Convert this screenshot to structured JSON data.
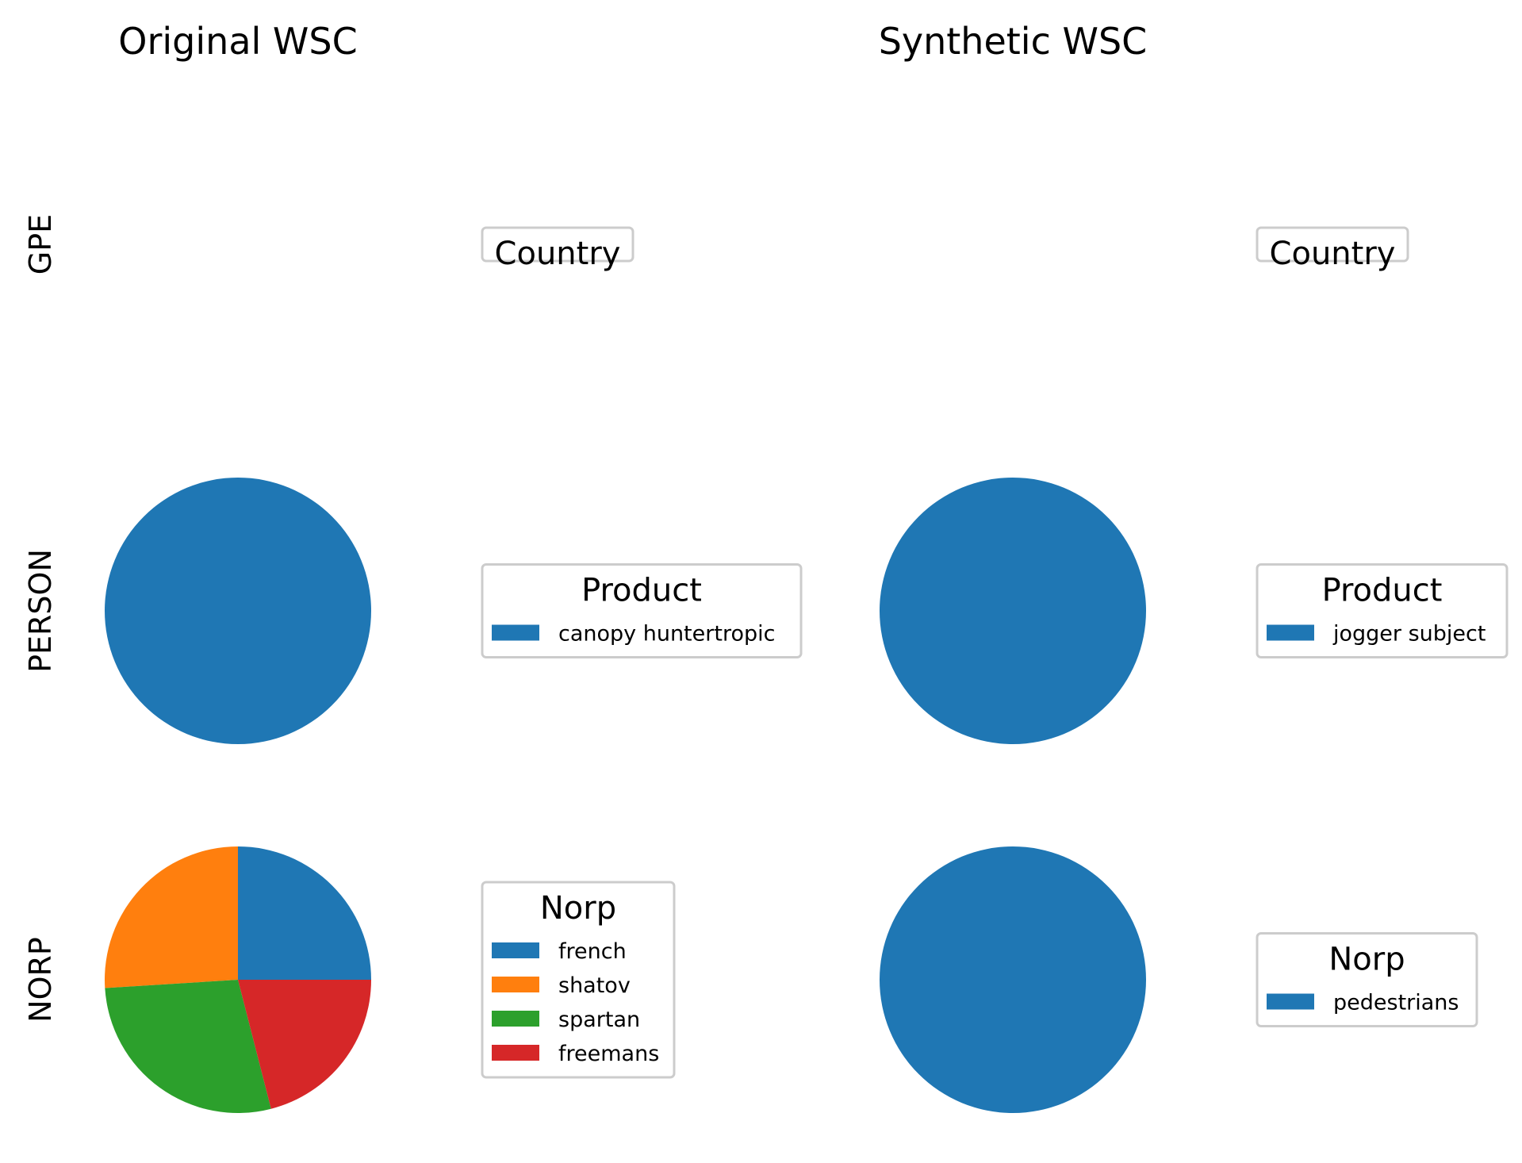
{
  "columns": [
    {
      "title": "Original WSC"
    },
    {
      "title": "Synthetic WSC"
    }
  ],
  "rows": [
    {
      "label": "GPE"
    },
    {
      "label": "PERSON"
    },
    {
      "label": "NORP"
    }
  ],
  "colors": [
    "#1f77b4",
    "#ff7f0e",
    "#2ca02c",
    "#d62728"
  ],
  "chart_data": [
    {
      "type": "pie",
      "column": "Original WSC",
      "row": "GPE",
      "legend_title": "Country",
      "labels": [],
      "values": []
    },
    {
      "type": "pie",
      "column": "Synthetic WSC",
      "row": "GPE",
      "legend_title": "Country",
      "labels": [],
      "values": []
    },
    {
      "type": "pie",
      "column": "Original WSC",
      "row": "PERSON",
      "legend_title": "Product",
      "labels": [
        "canopy huntertropic"
      ],
      "values": [
        1
      ]
    },
    {
      "type": "pie",
      "column": "Synthetic WSC",
      "row": "PERSON",
      "legend_title": "Product",
      "labels": [
        "jogger subject"
      ],
      "values": [
        1
      ]
    },
    {
      "type": "pie",
      "column": "Original WSC",
      "row": "NORP",
      "legend_title": "Norp",
      "labels": [
        "french",
        "shatov",
        "spartan",
        "freemans"
      ],
      "values": [
        25,
        26,
        28,
        21
      ]
    },
    {
      "type": "pie",
      "column": "Synthetic WSC",
      "row": "NORP",
      "legend_title": "Norp",
      "labels": [
        "pedestrians"
      ],
      "values": [
        1
      ]
    }
  ]
}
